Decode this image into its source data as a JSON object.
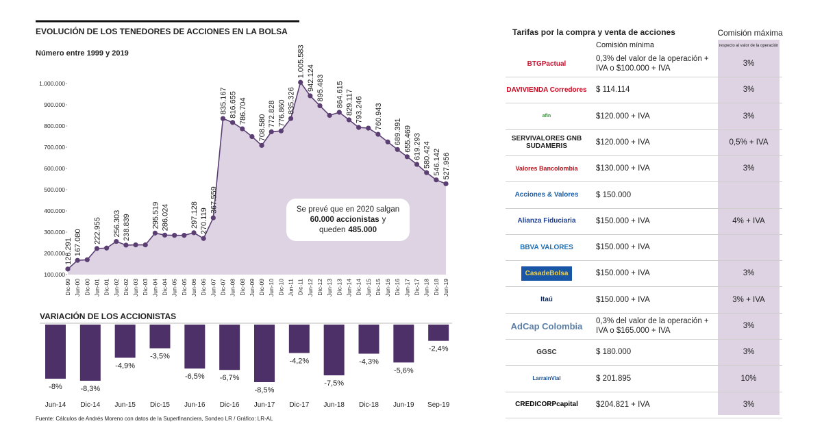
{
  "chart_data": [
    {
      "type": "line",
      "title": "EVOLUCIÓN DE LOS TENEDORES DE ACCIONES EN LA BOLSA",
      "subtitle": "Número entre 1999 y 2019",
      "categories": [
        "Dic-99",
        "Jun-00",
        "Dic-00",
        "Jun-01",
        "Dic-01",
        "Jun-02",
        "Dic-02",
        "Jun-03",
        "Dic-03",
        "Jun-04",
        "Dic-04",
        "Jun-05",
        "Dic-05",
        "Jun-06",
        "Dic-06",
        "Jun-07",
        "Dic-07",
        "Jun-08",
        "Dic-08",
        "Jun-09",
        "Dic-09",
        "Jun-10",
        "Dic-10",
        "Jun-11",
        "Dic-11",
        "Jun-12",
        "Dic-12",
        "Jun-13",
        "Dic-13",
        "Jun-14",
        "Dic-14",
        "Jun-15",
        "Dic-15",
        "Jun-16",
        "Dic-16",
        "Jun-17",
        "Dic-17",
        "Jun-18",
        "Dic-18",
        "Jun-19"
      ],
      "values": [
        126291,
        167080,
        170000,
        222955,
        225000,
        256303,
        238839,
        240000,
        240000,
        295519,
        286024,
        285000,
        285000,
        297128,
        270119,
        367559,
        835167,
        816655,
        786704,
        750000,
        708580,
        772828,
        776860,
        835326,
        1005583,
        942124,
        895483,
        850000,
        864615,
        829117,
        793246,
        790000,
        760943,
        725000,
        689391,
        655469,
        619293,
        580424,
        546142,
        527956
      ],
      "value_labels": [
        "126.291",
        "167.080",
        null,
        "222.955",
        null,
        "256.303",
        "238.839",
        null,
        null,
        "295.519",
        "286.024",
        null,
        null,
        "297.128",
        "270.119",
        "367.559",
        "835.167",
        "816.655",
        "786.704",
        null,
        "708.580",
        "772.828",
        "776.860",
        "835.326",
        "1.005.583",
        "942.124",
        "895.483",
        null,
        "864.615",
        "829.117",
        "793.246",
        null,
        "760.943",
        null,
        "689.391",
        "655.469",
        "619.293",
        "580.424",
        "546.142",
        "527.956"
      ],
      "color": "#5b3f73",
      "area_color": "#ddd3e3",
      "ylim": [
        100000,
        1020000
      ],
      "yticks": [
        {
          "value": 100000,
          "label": "100.000"
        },
        {
          "value": 200000,
          "label": "200.000"
        },
        {
          "value": 300000,
          "label": "300.000"
        },
        {
          "value": 400000,
          "label": "400.000"
        },
        {
          "value": 500000,
          "label": "500.000"
        },
        {
          "value": 600000,
          "label": "600.000"
        },
        {
          "value": 700000,
          "label": "700.000"
        },
        {
          "value": 800000,
          "label": "800.000"
        },
        {
          "value": 900000,
          "label": "900.000"
        },
        {
          "value": 1000000,
          "label": "1.000.000"
        }
      ],
      "grid": false,
      "annotation": [
        "Se prevé que en 2020 salgan",
        "60.000 accionistas",
        "y",
        "queden",
        "485.000"
      ]
    },
    {
      "type": "bar",
      "title": "VARIACIÓN DE LOS ACCIONISTAS",
      "categories": [
        "Jun-14",
        "Dic-14",
        "Jun-15",
        "Dic-15",
        "Jun-16",
        "Dic-16",
        "Jun-17",
        "Dic-17",
        "Jun-18",
        "Dic-18",
        "Jun-19",
        "Sep-19"
      ],
      "values": [
        -8,
        -8.3,
        -4.9,
        -3.5,
        -6.5,
        -6.7,
        -8.5,
        -4.2,
        -7.5,
        -4.3,
        -5.6,
        -2.4
      ],
      "value_labels": [
        "-8%",
        "-8,3%",
        "-4,9%",
        "-3,5%",
        "-6,5%",
        "-6,7%",
        "-8,5%",
        "-4,2%",
        "-7,5%",
        "-4,3%",
        "-5,6%",
        "-2,4%"
      ],
      "color": "#4e3068",
      "ylim": [
        -8.5,
        0
      ]
    }
  ],
  "source": "Fuente: Cálculos de Andrés Moreno con datos de la Superfinanciera, Sondeo LR / Gráfico: LR-AL",
  "table": {
    "title": "Tarifas por la compra y venta de acciones",
    "headers": [
      "Comisión mínima",
      "Comisión máxima",
      "respecto al valor de la operación"
    ],
    "rows": [
      [
        "BTGPactual",
        "0,3% del valor de la operación + IVA o $100.000 + IVA",
        "3%"
      ],
      [
        "DAVIVIENDA Corredores",
        "$ 114.114",
        "3%"
      ],
      [
        "afin",
        "$120.000 + IVA",
        "3%"
      ],
      [
        "SERVIVALORES GNB SUDAMERIS",
        "$120.000 + IVA",
        "0,5% + IVA"
      ],
      [
        "Valores Bancolombia",
        "$130.000 + IVA",
        "3%"
      ],
      [
        "Acciones & Valores",
        "$ 150.000",
        null
      ],
      [
        "Alianza Fiduciaria",
        "$150.000 + IVA",
        "4% + IVA"
      ],
      [
        "BBVA VALORES",
        "$150.000 + IVA",
        null
      ],
      [
        "CasadeBolsa",
        "$150.000 + IVA",
        "3%"
      ],
      [
        "Itaú",
        "$150.000 + IVA",
        "3% + IVA"
      ],
      [
        "AdCap Colombia",
        "0,3% del valor de la operación + IVA o $165.000 + IVA",
        "3%"
      ],
      [
        "GGSC",
        "$ 180.000",
        "3%"
      ],
      [
        "LarrainVial",
        "$ 201.895",
        "10%"
      ],
      [
        "CREDICORPcapital",
        "$204.821 + IVA",
        "3%"
      ]
    ]
  }
}
